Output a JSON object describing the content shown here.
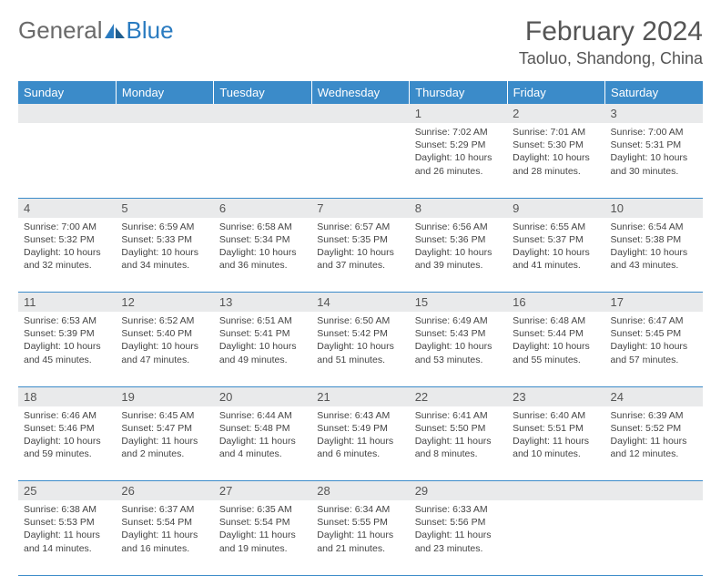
{
  "logo": {
    "text1": "General",
    "text2": "Blue"
  },
  "title": "February 2024",
  "location": "Taoluo, Shandong, China",
  "colors": {
    "header_bg": "#3b8bc9",
    "header_text": "#ffffff",
    "daynum_bg": "#e9eaeb",
    "border": "#3b8bc9",
    "body_bg": "#ffffff",
    "text": "#444444",
    "logo_gray": "#6a6a6a",
    "logo_blue": "#2a7bc0"
  },
  "weekdays": [
    "Sunday",
    "Monday",
    "Tuesday",
    "Wednesday",
    "Thursday",
    "Friday",
    "Saturday"
  ],
  "weeks": [
    [
      null,
      null,
      null,
      null,
      {
        "n": "1",
        "sr": "7:02 AM",
        "ss": "5:29 PM",
        "dl": "10 hours and 26 minutes."
      },
      {
        "n": "2",
        "sr": "7:01 AM",
        "ss": "5:30 PM",
        "dl": "10 hours and 28 minutes."
      },
      {
        "n": "3",
        "sr": "7:00 AM",
        "ss": "5:31 PM",
        "dl": "10 hours and 30 minutes."
      }
    ],
    [
      {
        "n": "4",
        "sr": "7:00 AM",
        "ss": "5:32 PM",
        "dl": "10 hours and 32 minutes."
      },
      {
        "n": "5",
        "sr": "6:59 AM",
        "ss": "5:33 PM",
        "dl": "10 hours and 34 minutes."
      },
      {
        "n": "6",
        "sr": "6:58 AM",
        "ss": "5:34 PM",
        "dl": "10 hours and 36 minutes."
      },
      {
        "n": "7",
        "sr": "6:57 AM",
        "ss": "5:35 PM",
        "dl": "10 hours and 37 minutes."
      },
      {
        "n": "8",
        "sr": "6:56 AM",
        "ss": "5:36 PM",
        "dl": "10 hours and 39 minutes."
      },
      {
        "n": "9",
        "sr": "6:55 AM",
        "ss": "5:37 PM",
        "dl": "10 hours and 41 minutes."
      },
      {
        "n": "10",
        "sr": "6:54 AM",
        "ss": "5:38 PM",
        "dl": "10 hours and 43 minutes."
      }
    ],
    [
      {
        "n": "11",
        "sr": "6:53 AM",
        "ss": "5:39 PM",
        "dl": "10 hours and 45 minutes."
      },
      {
        "n": "12",
        "sr": "6:52 AM",
        "ss": "5:40 PM",
        "dl": "10 hours and 47 minutes."
      },
      {
        "n": "13",
        "sr": "6:51 AM",
        "ss": "5:41 PM",
        "dl": "10 hours and 49 minutes."
      },
      {
        "n": "14",
        "sr": "6:50 AM",
        "ss": "5:42 PM",
        "dl": "10 hours and 51 minutes."
      },
      {
        "n": "15",
        "sr": "6:49 AM",
        "ss": "5:43 PM",
        "dl": "10 hours and 53 minutes."
      },
      {
        "n": "16",
        "sr": "6:48 AM",
        "ss": "5:44 PM",
        "dl": "10 hours and 55 minutes."
      },
      {
        "n": "17",
        "sr": "6:47 AM",
        "ss": "5:45 PM",
        "dl": "10 hours and 57 minutes."
      }
    ],
    [
      {
        "n": "18",
        "sr": "6:46 AM",
        "ss": "5:46 PM",
        "dl": "10 hours and 59 minutes."
      },
      {
        "n": "19",
        "sr": "6:45 AM",
        "ss": "5:47 PM",
        "dl": "11 hours and 2 minutes."
      },
      {
        "n": "20",
        "sr": "6:44 AM",
        "ss": "5:48 PM",
        "dl": "11 hours and 4 minutes."
      },
      {
        "n": "21",
        "sr": "6:43 AM",
        "ss": "5:49 PM",
        "dl": "11 hours and 6 minutes."
      },
      {
        "n": "22",
        "sr": "6:41 AM",
        "ss": "5:50 PM",
        "dl": "11 hours and 8 minutes."
      },
      {
        "n": "23",
        "sr": "6:40 AM",
        "ss": "5:51 PM",
        "dl": "11 hours and 10 minutes."
      },
      {
        "n": "24",
        "sr": "6:39 AM",
        "ss": "5:52 PM",
        "dl": "11 hours and 12 minutes."
      }
    ],
    [
      {
        "n": "25",
        "sr": "6:38 AM",
        "ss": "5:53 PM",
        "dl": "11 hours and 14 minutes."
      },
      {
        "n": "26",
        "sr": "6:37 AM",
        "ss": "5:54 PM",
        "dl": "11 hours and 16 minutes."
      },
      {
        "n": "27",
        "sr": "6:35 AM",
        "ss": "5:54 PM",
        "dl": "11 hours and 19 minutes."
      },
      {
        "n": "28",
        "sr": "6:34 AM",
        "ss": "5:55 PM",
        "dl": "11 hours and 21 minutes."
      },
      {
        "n": "29",
        "sr": "6:33 AM",
        "ss": "5:56 PM",
        "dl": "11 hours and 23 minutes."
      },
      null,
      null
    ]
  ],
  "labels": {
    "sunrise": "Sunrise:",
    "sunset": "Sunset:",
    "daylight": "Daylight:"
  }
}
